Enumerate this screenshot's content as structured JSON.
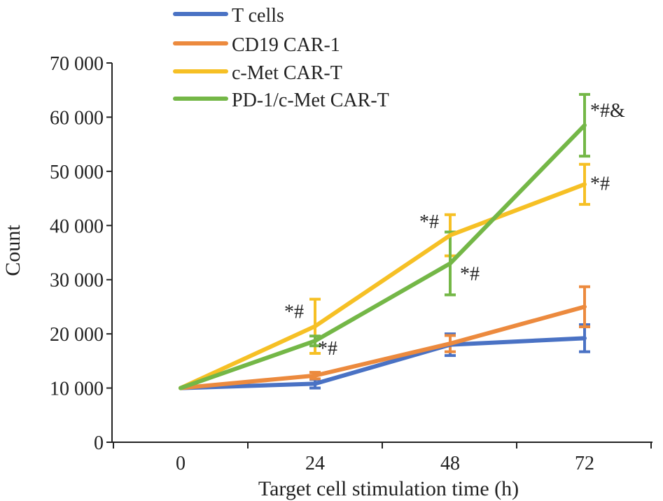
{
  "chart_data": {
    "type": "line",
    "title": "",
    "xlabel": "Target cell stimulation time (h)",
    "ylabel": "Count",
    "categories": [
      "0",
      "24",
      "48",
      "72"
    ],
    "ylim": [
      0,
      70000
    ],
    "y_ticks": [
      0,
      10000,
      20000,
      30000,
      40000,
      50000,
      60000,
      70000
    ],
    "y_tick_labels": [
      "0",
      "10 000",
      "20 000",
      "30 000",
      "40 000",
      "50 000",
      "60 000",
      "70 000"
    ],
    "grid": false,
    "legend_position": "top-left",
    "series": [
      {
        "name": "T cells",
        "color": "#4a72c4",
        "values": [
          10000,
          10800,
          18000,
          19200
        ],
        "errors": [
          0,
          800,
          2000,
          2500
        ],
        "annotations": [
          "",
          "",
          "",
          ""
        ]
      },
      {
        "name": "CD19 CAR-1",
        "color": "#ec8a3e",
        "values": [
          10000,
          12300,
          18200,
          25000
        ],
        "errors": [
          0,
          600,
          1500,
          3700
        ],
        "annotations": [
          "",
          "",
          "",
          ""
        ]
      },
      {
        "name": "c-Met CAR-T",
        "color": "#f6c025",
        "values": [
          10000,
          21400,
          38200,
          47600
        ],
        "errors": [
          0,
          5000,
          3800,
          3700
        ],
        "annotations": [
          "",
          "*#",
          "*#",
          "*#"
        ]
      },
      {
        "name": "PD-1/c-Met CAR-T",
        "color": "#74b747",
        "values": [
          10000,
          18700,
          33000,
          58500
        ],
        "errors": [
          0,
          900,
          5800,
          5700
        ],
        "annotations": [
          "",
          "*#",
          "*#",
          "*#&"
        ]
      }
    ]
  }
}
